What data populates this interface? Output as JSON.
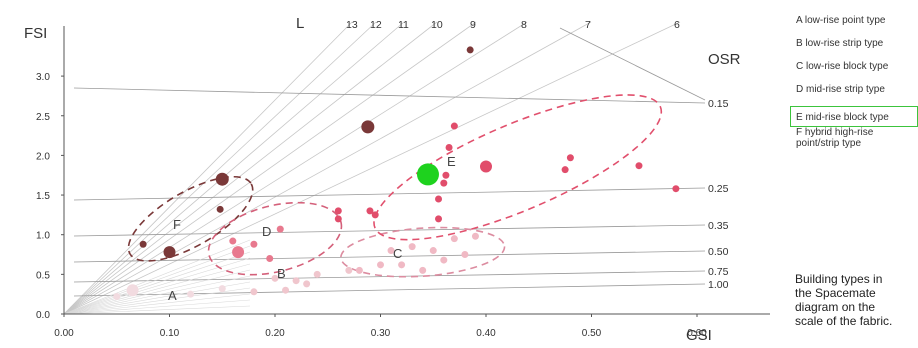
{
  "chart_data": {
    "type": "scatter",
    "title": "",
    "xlabel": "GSI",
    "ylabel": "FSI",
    "xlim": [
      0,
      0.63
    ],
    "ylim": [
      0,
      3.35
    ],
    "x_ticks": [
      "0.00",
      "0.10",
      "0.20",
      "0.30",
      "0.40",
      "0.50",
      "0.60"
    ],
    "y_ticks": [
      "0.0",
      "0.5",
      "1.0",
      "1.5",
      "2.0",
      "2.5",
      "3.0"
    ],
    "grid": false,
    "layer_lines_title": "L",
    "layer_lines": [
      "13",
      "12",
      "11",
      "10",
      "9",
      "8",
      "7",
      "6"
    ],
    "osr_title": "OSR",
    "osr_lines": [
      "0.15",
      "0.25",
      "0.35",
      "0.50",
      "0.75",
      "1.00"
    ],
    "groups": [
      {
        "id": "A",
        "legend": "A  low-rise point type",
        "color": "#f2dbe0",
        "points": [
          [
            0.065,
            0.3
          ],
          [
            0.12,
            0.25
          ],
          [
            0.15,
            0.32
          ],
          [
            0.05,
            0.22
          ]
        ]
      },
      {
        "id": "B",
        "legend": "B  low-rise strip type",
        "color": "#f0c6cd",
        "points": [
          [
            0.18,
            0.28
          ],
          [
            0.21,
            0.3
          ],
          [
            0.22,
            0.42
          ],
          [
            0.24,
            0.5
          ],
          [
            0.27,
            0.55
          ],
          [
            0.2,
            0.45
          ],
          [
            0.23,
            0.38
          ]
        ]
      },
      {
        "id": "C",
        "legend": "C  low-rise block type",
        "color": "#f0b9c4",
        "points": [
          [
            0.28,
            0.55
          ],
          [
            0.3,
            0.62
          ],
          [
            0.31,
            0.8
          ],
          [
            0.33,
            0.85
          ],
          [
            0.35,
            0.8
          ],
          [
            0.36,
            0.68
          ],
          [
            0.37,
            0.95
          ],
          [
            0.38,
            0.75
          ],
          [
            0.39,
            0.98
          ],
          [
            0.32,
            0.62
          ],
          [
            0.34,
            0.55
          ]
        ]
      },
      {
        "id": "D",
        "legend": "D  mid-rise strip type",
        "color": "#e8798e",
        "points": [
          [
            0.165,
            0.78
          ],
          [
            0.16,
            0.92
          ],
          [
            0.18,
            0.88
          ],
          [
            0.205,
            1.07
          ],
          [
            0.195,
            0.7
          ]
        ]
      },
      {
        "id": "E",
        "legend": "E  mid-rise block type",
        "color": "#e14d6b",
        "points": [
          [
            0.26,
            1.3
          ],
          [
            0.26,
            1.2
          ],
          [
            0.29,
            1.3
          ],
          [
            0.295,
            1.25
          ],
          [
            0.355,
            1.2
          ],
          [
            0.355,
            1.45
          ],
          [
            0.36,
            1.65
          ],
          [
            0.362,
            1.75
          ],
          [
            0.365,
            2.1
          ],
          [
            0.37,
            2.37
          ],
          [
            0.4,
            1.86
          ],
          [
            0.475,
            1.82
          ],
          [
            0.48,
            1.97
          ],
          [
            0.545,
            1.87
          ],
          [
            0.58,
            1.58
          ]
        ]
      },
      {
        "id": "F",
        "legend": "F  hybrid high-rise point/strip type",
        "color": "#7a3838",
        "points": [
          [
            0.075,
            0.88
          ],
          [
            0.1,
            0.78
          ],
          [
            0.148,
            1.32
          ],
          [
            0.15,
            1.7
          ],
          [
            0.288,
            2.36
          ],
          [
            0.385,
            3.33
          ]
        ]
      }
    ],
    "highlight_point": {
      "x": 0.345,
      "y": 1.76,
      "color": "#1ed21e"
    }
  },
  "legend": {
    "items": [
      "A  low-rise point type",
      "B  low-rise strip type",
      "C  low-rise block type",
      "D  mid-rise strip type",
      "E  mid-rise block type",
      "F  hybrid high-rise point/strip type"
    ],
    "highlighted": 4
  },
  "caption": "Building types in\nthe Spacemate\ndiagram on the\nscale of the fabric."
}
